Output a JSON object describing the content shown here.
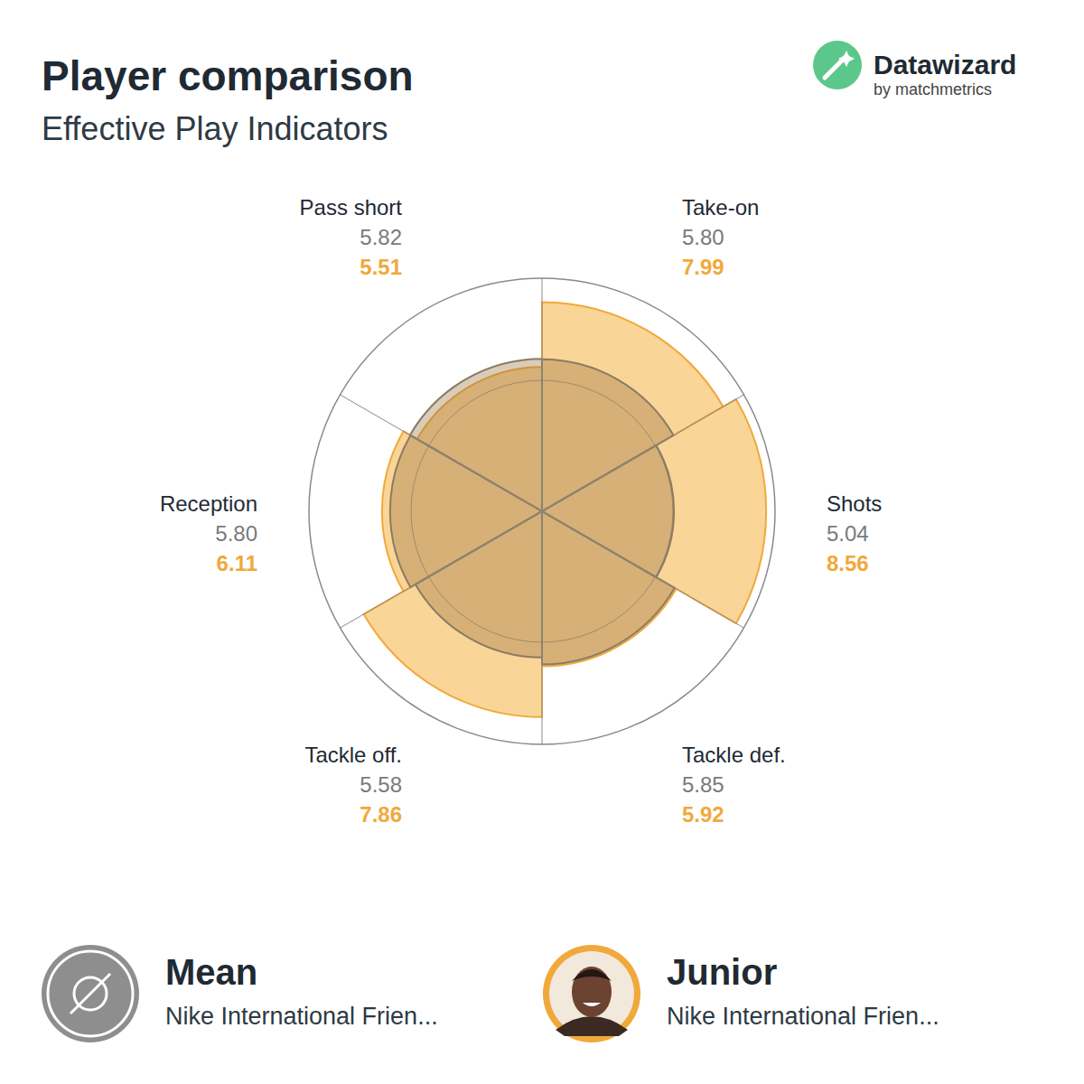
{
  "chart_data": {
    "type": "polar_area",
    "title": "Player comparison",
    "subtitle": "Effective Play Indicators",
    "brand": {
      "name": "Datawizard",
      "tagline": "by matchmetrics"
    },
    "categories": [
      "Take-on",
      "Shots",
      "Tackle def.",
      "Tackle off.",
      "Reception",
      "Pass short"
    ],
    "series": [
      {
        "name": "Mean",
        "subtitle": "Nike International Frien...",
        "color": "#8e8e8e",
        "values": [
          5.8,
          5.04,
          5.85,
          5.58,
          5.8,
          5.82
        ],
        "value_labels": [
          "5.80",
          "5.04",
          "5.85",
          "5.58",
          "5.80",
          "5.82"
        ]
      },
      {
        "name": "Junior",
        "subtitle": "Nike International Frien...",
        "color": "#f0a93a",
        "values": [
          7.99,
          8.56,
          5.92,
          7.86,
          6.11,
          5.51
        ],
        "value_labels": [
          "7.99",
          "8.56",
          "5.92",
          "7.86",
          "6.11",
          "5.51"
        ]
      }
    ],
    "ylim": [
      0,
      8.9
    ],
    "yticks": [
      5
    ],
    "tick_labels": false,
    "data_labels": true,
    "legend": "bottom"
  }
}
